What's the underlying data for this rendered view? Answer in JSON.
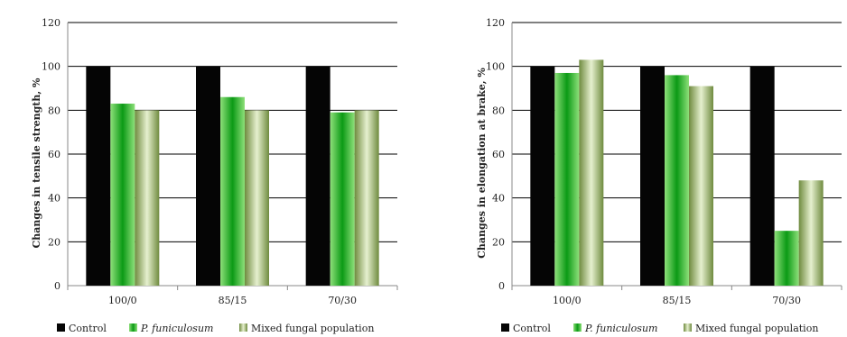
{
  "colors": {
    "control": "#050505",
    "p_funiculosum": "#22b622",
    "mixed": "#8fa85a",
    "grid": "#000000",
    "axis": "#888888"
  },
  "legend": {
    "control": "Control",
    "p_funiculosum": "P. funiculosum",
    "mixed": "Mixed fungal population"
  },
  "chart_data": [
    {
      "type": "bar",
      "categories": [
        "100/0",
        "85/15",
        "70/30"
      ],
      "yticks": [
        "0",
        "20",
        "40",
        "60",
        "80",
        "100",
        "120"
      ],
      "ylim": [
        0,
        120
      ],
      "ylabel": "Changes in tensile strength, %",
      "xlabel": "",
      "grid": true,
      "legend_position": "bottom",
      "series": [
        {
          "name": "Control",
          "values": [
            100,
            100,
            100
          ]
        },
        {
          "name": "P. funiculosum",
          "values": [
            83,
            86,
            79
          ]
        },
        {
          "name": "Mixed fungal population",
          "values": [
            80,
            80,
            80
          ]
        }
      ]
    },
    {
      "type": "bar",
      "categories": [
        "100/0",
        "85/15",
        "70/30"
      ],
      "yticks": [
        "0",
        "20",
        "40",
        "60",
        "80",
        "100",
        "120"
      ],
      "ylim": [
        0,
        120
      ],
      "ylabel": "Changes in elongation at brake, %",
      "xlabel": "",
      "grid": true,
      "legend_position": "bottom",
      "series": [
        {
          "name": "Control",
          "values": [
            100,
            100,
            100
          ]
        },
        {
          "name": "P. funiculosum",
          "values": [
            97,
            96,
            25
          ]
        },
        {
          "name": "Mixed fungal population",
          "values": [
            103,
            91,
            48
          ]
        }
      ]
    }
  ]
}
